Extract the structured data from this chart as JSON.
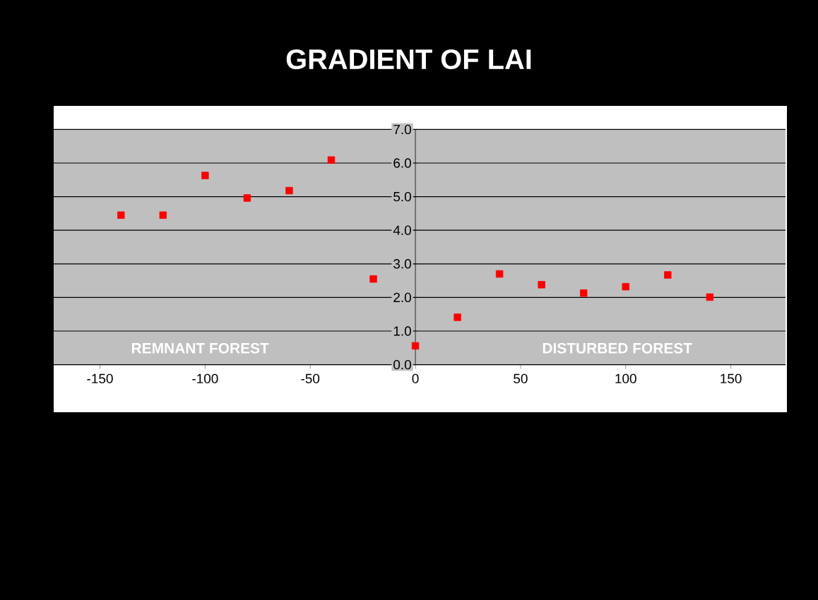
{
  "chart_data": {
    "type": "scatter",
    "title": "GRADIENT OF LAI",
    "x": [
      -140,
      -120,
      -100,
      -80,
      -60,
      -40,
      -20,
      0,
      20,
      40,
      60,
      80,
      100,
      120,
      140
    ],
    "values": [
      4.45,
      4.45,
      5.63,
      4.96,
      5.18,
      6.09,
      2.55,
      0.56,
      1.41,
      2.7,
      2.38,
      2.13,
      2.32,
      2.67,
      2.01
    ],
    "color": "#ff0000",
    "marker": "square",
    "grid": "y",
    "xlim": [
      -172,
      176
    ],
    "xticks": [
      -150,
      -100,
      -50,
      0,
      50,
      100,
      150
    ],
    "ylim": [
      0,
      7
    ],
    "yticks": [
      {
        "value": 0,
        "label": "0.0"
      },
      {
        "value": 1,
        "label": "1.0"
      },
      {
        "value": 2,
        "label": "2.0"
      },
      {
        "value": 3,
        "label": "3.0"
      },
      {
        "value": 4,
        "label": "4.0"
      },
      {
        "value": 5,
        "label": "5.0"
      },
      {
        "value": 6,
        "label": "6.0"
      },
      {
        "value": 7,
        "label": "7.0"
      }
    ],
    "annotations": [
      "REMNANT FOREST",
      "DISTURBED FOREST"
    ]
  }
}
